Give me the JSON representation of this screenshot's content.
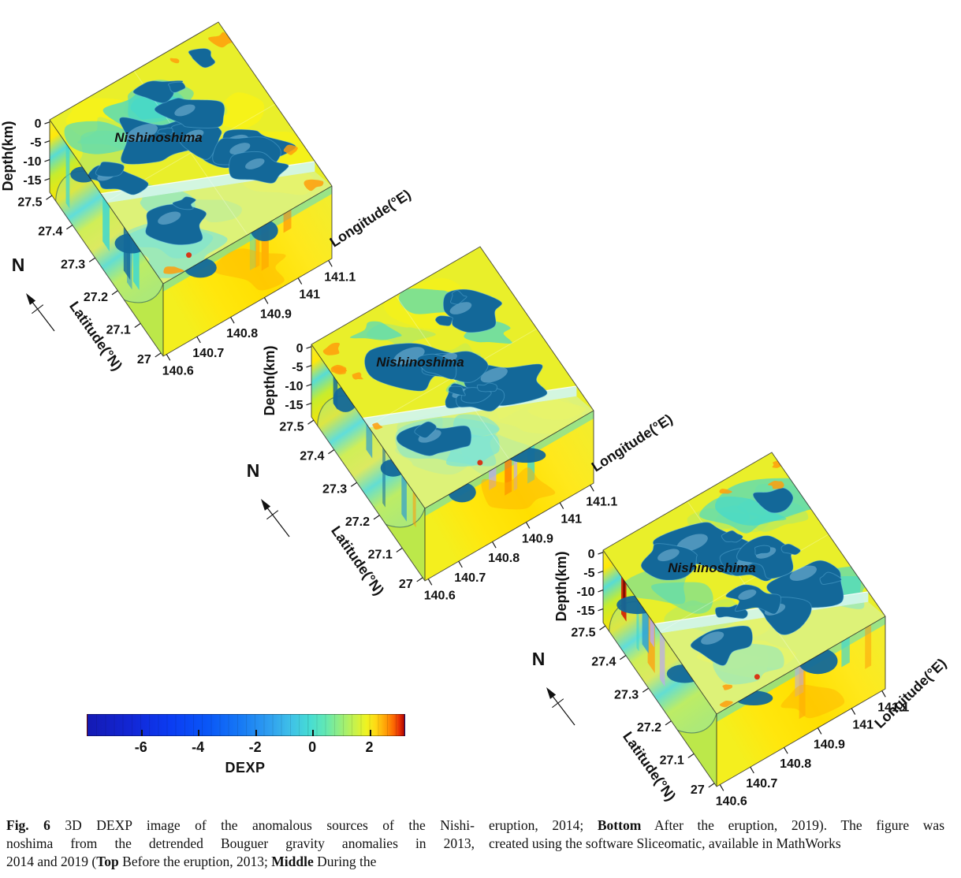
{
  "palette": {
    "blob_blue": "#136899",
    "blob_highlight": "#9fd4ef",
    "top_base": "#e9ef2a",
    "bright_yellow": "#fbf312",
    "cyan_patch": "#41d8cf",
    "pale_green": "#abe86e",
    "slice_wall": "#d2f5ea",
    "orange": "#ff9d0c",
    "red": "#dd2405",
    "lavender": "#b9aaf0",
    "axis_color": "#111111"
  },
  "plots": [
    {
      "name": "top",
      "island_label": "Nishinoshima",
      "north_label": "N",
      "depth_axis": {
        "label": "Depth(km)",
        "ticks": [
          "0",
          "-5",
          "-10",
          "-15"
        ]
      },
      "lat_axis": {
        "label": "Latitude(°N)",
        "ticks": [
          "27.5",
          "27.4",
          "27.3",
          "27.2",
          "27.1",
          "27"
        ]
      },
      "lon_axis": {
        "label": "Longitude(°E)",
        "ticks": [
          "140.6",
          "140.7",
          "140.8",
          "140.9",
          "141",
          "141.1"
        ]
      }
    },
    {
      "name": "middle",
      "island_label": "Nishinoshima",
      "north_label": "N",
      "depth_axis": {
        "label": "Depth(km)",
        "ticks": [
          "0",
          "-5",
          "-10",
          "-15"
        ]
      },
      "lat_axis": {
        "label": "Latitude(°N)",
        "ticks": [
          "27.5",
          "27.4",
          "27.3",
          "27.2",
          "27.1",
          "27"
        ]
      },
      "lon_axis": {
        "label": "Longitude(°E)",
        "ticks": [
          "140.6",
          "140.7",
          "140.8",
          "140.9",
          "141",
          "141.1"
        ]
      }
    },
    {
      "name": "bottom",
      "island_label": "Nishinoshima",
      "north_label": "N",
      "depth_axis": {
        "label": "Depth(km)",
        "ticks": [
          "0",
          "-5",
          "-10",
          "-15"
        ]
      },
      "lat_axis": {
        "label": "Latitude(°N)",
        "ticks": [
          "27.5",
          "27.4",
          "27.3",
          "27.2",
          "27.1",
          "27"
        ]
      },
      "lon_axis": {
        "label": "Longitude(°E)",
        "ticks": [
          "140.6",
          "140.7",
          "140.8",
          "140.9",
          "141",
          "141.1"
        ]
      }
    }
  ],
  "colorbar": {
    "label": "DEXP",
    "ticks": [
      "-6",
      "-4",
      "-2",
      "0",
      "2"
    ],
    "tick_values": [
      -6,
      -4,
      -2,
      0,
      2
    ],
    "range": [
      -7.9,
      3.2
    ],
    "stops": [
      [
        0,
        "#141ab4"
      ],
      [
        0.14,
        "#1227d6"
      ],
      [
        0.26,
        "#0b3cf2"
      ],
      [
        0.38,
        "#0a57f7"
      ],
      [
        0.48,
        "#1678f5"
      ],
      [
        0.57,
        "#2e9df0"
      ],
      [
        0.64,
        "#3fc0e8"
      ],
      [
        0.7,
        "#46dcd4"
      ],
      [
        0.75,
        "#62e8b4"
      ],
      [
        0.8,
        "#97ee7c"
      ],
      [
        0.84,
        "#c4f24e"
      ],
      [
        0.88,
        "#eff321"
      ],
      [
        0.91,
        "#ffd814"
      ],
      [
        0.94,
        "#ffa107"
      ],
      [
        0.965,
        "#fc6a02"
      ],
      [
        0.985,
        "#e52e05"
      ],
      [
        0.995,
        "#c01203"
      ],
      [
        1,
        "#8f0a05"
      ]
    ]
  },
  "caption": {
    "left_lines": [
      [
        {
          "t": "Fig. 6",
          "b": true
        },
        {
          "t": "  3D DEXP image of the anomalous sources of the Nishi-"
        }
      ],
      [
        {
          "t": "noshima from the detrended Bouguer gravity anomalies in 2013,"
        }
      ],
      [
        {
          "t": "2014 and 2019 ("
        },
        {
          "t": "Top",
          "b": true
        },
        {
          "t": " Before the eruption, 2013; "
        },
        {
          "t": "Middle",
          "b": true
        },
        {
          "t": " During the"
        }
      ]
    ],
    "right_lines": [
      [
        {
          "t": "eruption, 2014; "
        },
        {
          "t": "Bottom",
          "b": true
        },
        {
          "t": " After the eruption, 2019). The figure was"
        }
      ],
      [
        {
          "t": "created using the software Sliceomatic, available in MathWorks"
        }
      ]
    ]
  },
  "chart_data": [
    {
      "type": "heatmap",
      "title": "3D DEXP volume - Top: before the eruption (2013)",
      "xlabel": "Longitude(°E)",
      "ylabel": "Latitude(°N)",
      "zlabel": "Depth(km)",
      "x_range": [
        140.6,
        141.1
      ],
      "y_range": [
        27.0,
        27.5
      ],
      "z_range": [
        -15,
        0
      ],
      "x_ticks": [
        140.6,
        140.7,
        140.8,
        140.9,
        141,
        141.1
      ],
      "y_ticks": [
        27.5,
        27.4,
        27.3,
        27.2,
        27.1,
        27
      ],
      "z_ticks": [
        0,
        -5,
        -10,
        -15
      ],
      "annotation": "Nishinoshima",
      "legend_position": "none",
      "colorbar": {
        "label": "DEXP",
        "ticks": [
          -6,
          -4,
          -2,
          0,
          2
        ],
        "range": [
          -7.9,
          3.2
        ]
      }
    },
    {
      "type": "heatmap",
      "title": "3D DEXP volume - Middle: during the eruption (2014)",
      "xlabel": "Longitude(°E)",
      "ylabel": "Latitude(°N)",
      "zlabel": "Depth(km)",
      "x_range": [
        140.6,
        141.1
      ],
      "y_range": [
        27.0,
        27.5
      ],
      "z_range": [
        -15,
        0
      ],
      "x_ticks": [
        140.6,
        140.7,
        140.8,
        140.9,
        141,
        141.1
      ],
      "y_ticks": [
        27.5,
        27.4,
        27.3,
        27.2,
        27.1,
        27
      ],
      "z_ticks": [
        0,
        -5,
        -10,
        -15
      ],
      "annotation": "Nishinoshima",
      "legend_position": "none",
      "colorbar": {
        "label": "DEXP",
        "ticks": [
          -6,
          -4,
          -2,
          0,
          2
        ],
        "range": [
          -7.9,
          3.2
        ]
      }
    },
    {
      "type": "heatmap",
      "title": "3D DEXP volume - Bottom: after the eruption (2019)",
      "xlabel": "Longitude(°E)",
      "ylabel": "Latitude(°N)",
      "zlabel": "Depth(km)",
      "x_range": [
        140.6,
        141.1
      ],
      "y_range": [
        27.0,
        27.5
      ],
      "z_range": [
        -15,
        0
      ],
      "x_ticks": [
        140.6,
        140.7,
        140.8,
        140.9,
        141,
        141.1
      ],
      "y_ticks": [
        27.5,
        27.4,
        27.3,
        27.2,
        27.1,
        27
      ],
      "z_ticks": [
        0,
        -5,
        -10,
        -15
      ],
      "annotation": "Nishinoshima",
      "legend_position": "none",
      "colorbar": {
        "label": "DEXP",
        "ticks": [
          -6,
          -4,
          -2,
          0,
          2
        ],
        "range": [
          -7.9,
          3.2
        ]
      }
    }
  ]
}
